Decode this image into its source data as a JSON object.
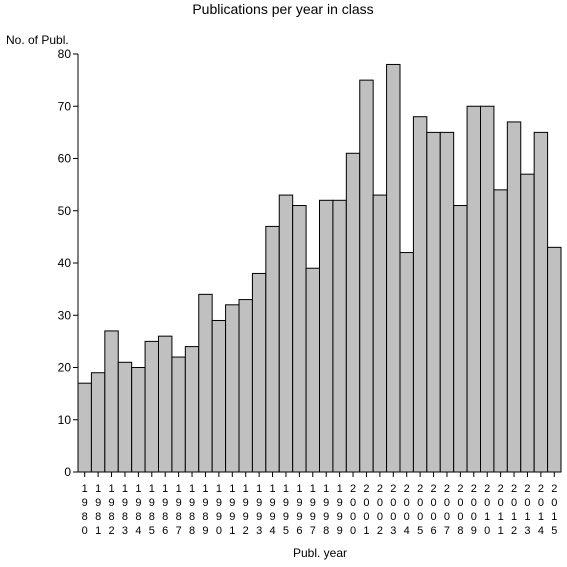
{
  "chart_data": {
    "type": "bar",
    "title": "Publications per year in class",
    "ylabel": "No. of Publ.",
    "xlabel": "Publ. year",
    "ylim": [
      0,
      80
    ],
    "yticks": [
      0,
      10,
      20,
      30,
      40,
      50,
      60,
      70,
      80
    ],
    "grid": false,
    "categories": [
      "1980",
      "1981",
      "1982",
      "1983",
      "1984",
      "1985",
      "1986",
      "1987",
      "1988",
      "1989",
      "1990",
      "1991",
      "1992",
      "1993",
      "1994",
      "1995",
      "1996",
      "1997",
      "1998",
      "1999",
      "2000",
      "2001",
      "2002",
      "2003",
      "2004",
      "2005",
      "2006",
      "2007",
      "2008",
      "2009",
      "2010",
      "2011",
      "2012",
      "2013",
      "2014",
      "2015"
    ],
    "values": [
      17,
      19,
      27,
      21,
      20,
      25,
      26,
      22,
      24,
      34,
      29,
      32,
      33,
      38,
      47,
      53,
      51,
      39,
      52,
      52,
      61,
      75,
      53,
      78,
      42,
      68,
      65,
      65,
      51,
      70,
      70,
      54,
      67,
      57,
      65,
      43
    ],
    "colors": {
      "bar_fill": "#c0c0c0",
      "bar_stroke": "#000000"
    }
  }
}
